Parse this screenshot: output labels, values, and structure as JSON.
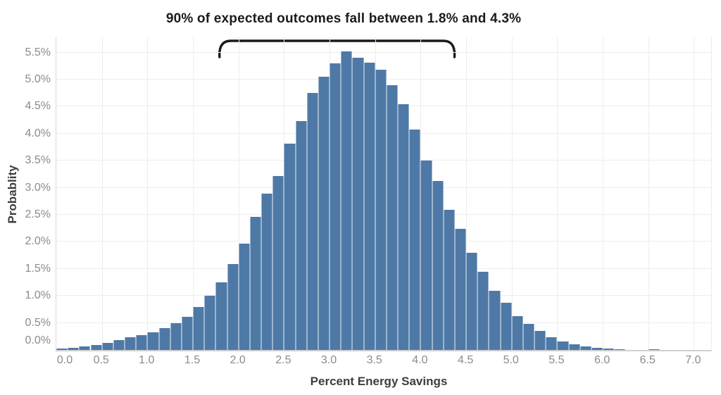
{
  "chart_data": {
    "type": "bar",
    "title": "90% of expected outcomes fall between 1.8% and 4.3%",
    "xlabel": "Percent Energy Savings",
    "ylabel": "Probablity",
    "bin_start": 0.0,
    "bin_width": 0.125,
    "values_percent": [
      0.02,
      0.04,
      0.06,
      0.09,
      0.13,
      0.18,
      0.23,
      0.27,
      0.33,
      0.4,
      0.49,
      0.61,
      0.8,
      1.0,
      1.25,
      1.59,
      1.96,
      2.46,
      2.89,
      3.22,
      3.81,
      4.23,
      4.75,
      5.05,
      5.3,
      5.52,
      5.4,
      5.31,
      5.18,
      4.89,
      4.54,
      4.08,
      3.5,
      3.13,
      2.59,
      2.24,
      1.8,
      1.45,
      1.1,
      0.87,
      0.62,
      0.48,
      0.35,
      0.23,
      0.15,
      0.1,
      0.07,
      0.04,
      0.02,
      0.01,
      0,
      0,
      0.015,
      0,
      0,
      0
    ],
    "x_ticks": [
      "0.0",
      "0.5",
      "1.0",
      "1.5",
      "2.0",
      "2.5",
      "3.0",
      "3.5",
      "4.0",
      "4.5",
      "5.0",
      "5.5",
      "6.0",
      "6.5",
      "7.0"
    ],
    "y_ticks": [
      "0.0%",
      "0.5%",
      "1.0%",
      "1.5%",
      "2.0%",
      "2.5%",
      "3.0%",
      "3.5%",
      "4.0%",
      "4.5%",
      "5.0%",
      "5.5%"
    ],
    "x_range": [
      0,
      7.19
    ],
    "y_range": [
      0,
      5.78
    ],
    "grid": true,
    "legend": null,
    "annotation": {
      "text": "90% of expected outcomes fall between 1.8% and 4.3%",
      "bracket_from": 1.8,
      "bracket_to": 4.38
    },
    "colors": {
      "bar": "#4e79a7",
      "grid": "#ededed",
      "axis_line": "#d0d0d0",
      "tick_label": "#8b8b8b",
      "axis_title": "#3d3d3d",
      "title_text": "#1b1b1b",
      "bracket": "#1a1a1a"
    }
  }
}
